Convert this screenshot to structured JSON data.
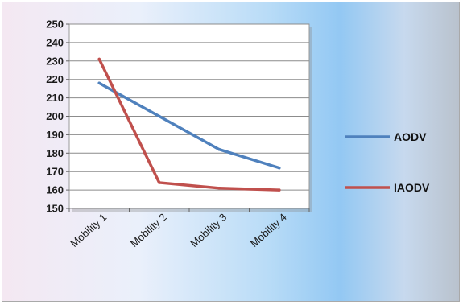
{
  "chart_data": {
    "type": "line",
    "title": "",
    "xlabel": "",
    "ylabel": "",
    "categories": [
      "Mobility 1",
      "Mobility 2",
      "Mobility 3",
      "Mobility 4"
    ],
    "ylim": [
      150,
      250
    ],
    "yticks": [
      150,
      160,
      170,
      180,
      190,
      200,
      210,
      220,
      230,
      240,
      250
    ],
    "grid": true,
    "legend_position": "right",
    "series": [
      {
        "name": "AODV",
        "values": [
          218,
          200,
          182,
          172
        ],
        "color": "#4f81bd"
      },
      {
        "name": "IAODV",
        "values": [
          231,
          164,
          161,
          160
        ],
        "color": "#c0504d"
      }
    ]
  }
}
